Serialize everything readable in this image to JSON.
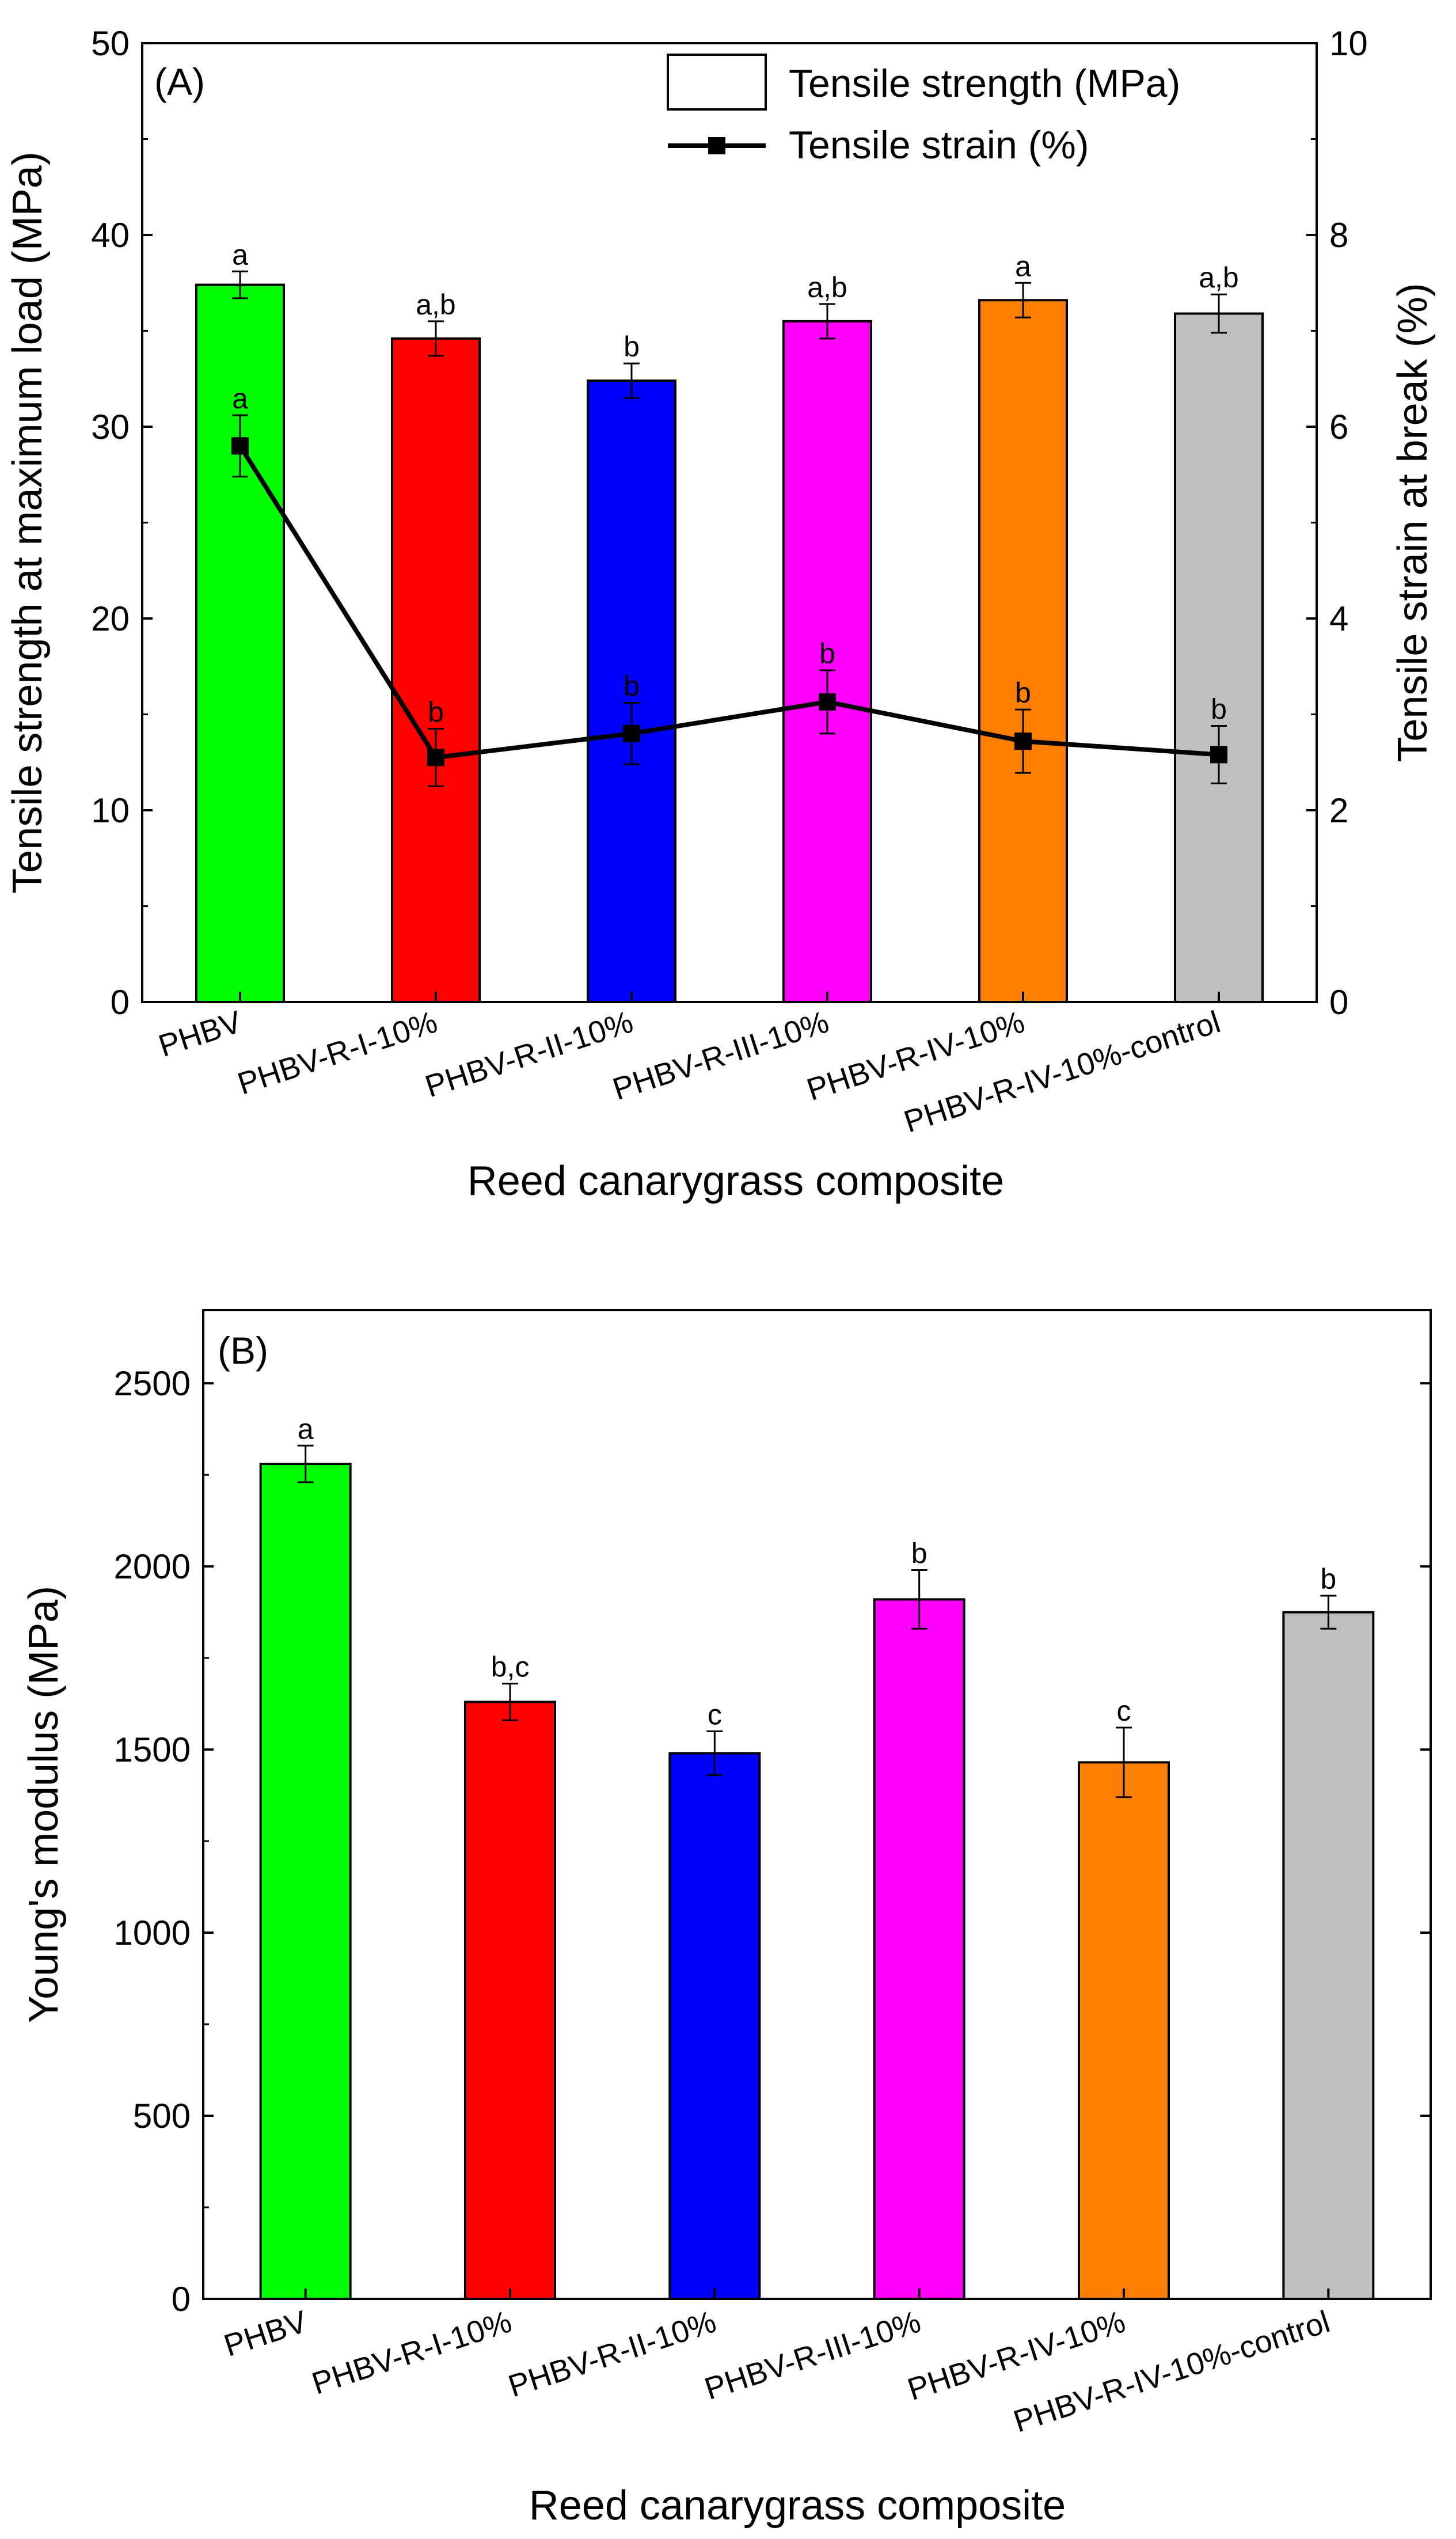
{
  "chart_data": [
    {
      "type": "bar",
      "panel_label": "(A)",
      "categories": [
        "PHBV",
        "PHBV-R-I-10%",
        "PHBV-R-II-10%",
        "PHBV-R-III-10%",
        "PHBV-R-IV-10%",
        "PHBV-R-IV-10%-control"
      ],
      "bar_colors": [
        "#00ff00",
        "#ff0000",
        "#0000ff",
        "#ff00ff",
        "#ff8000",
        "#c0c0c0"
      ],
      "xlabel": "Reed canarygrass composite",
      "ylabel": "Tensile strength at maximum load (MPa)",
      "y2label": "Tensile strain at break (%)",
      "ylim": [
        0,
        50
      ],
      "yticks": [
        0,
        10,
        20,
        30,
        40,
        50
      ],
      "y2lim": [
        0,
        10
      ],
      "y2ticks": [
        0,
        2,
        4,
        6,
        8,
        10
      ],
      "legend_position": "top-right",
      "series": [
        {
          "name": "Tensile strength (MPa)",
          "kind": "bar",
          "axis": "left",
          "values": [
            37.4,
            34.6,
            32.4,
            35.5,
            36.6,
            35.9
          ],
          "errors": [
            0.7,
            0.9,
            0.9,
            0.9,
            0.9,
            1.0
          ],
          "significance": [
            "a",
            "a,b",
            "b",
            "a,b",
            "a",
            "a,b"
          ]
        },
        {
          "name": "Tensile strain (%)",
          "kind": "line",
          "axis": "right",
          "values": [
            5.8,
            2.55,
            2.8,
            3.13,
            2.72,
            2.58
          ],
          "errors": [
            0.32,
            0.3,
            0.32,
            0.33,
            0.33,
            0.3
          ],
          "significance": [
            "a",
            "b",
            "b",
            "b",
            "b",
            "b"
          ]
        }
      ]
    },
    {
      "type": "bar",
      "panel_label": "(B)",
      "categories": [
        "PHBV",
        "PHBV-R-I-10%",
        "PHBV-R-II-10%",
        "PHBV-R-III-10%",
        "PHBV-R-IV-10%",
        "PHBV-R-IV-10%-control"
      ],
      "bar_colors": [
        "#00ff00",
        "#ff0000",
        "#0000ff",
        "#ff00ff",
        "#ff8000",
        "#c0c0c0"
      ],
      "xlabel": "Reed canarygrass composite",
      "ylabel": "Young's modulus (MPa)",
      "ylim": [
        0,
        2700
      ],
      "yticks": [
        0,
        500,
        1000,
        1500,
        2000,
        2500
      ],
      "series": [
        {
          "name": "Young's modulus (MPa)",
          "kind": "bar",
          "values": [
            2280,
            1630,
            1490,
            1910,
            1465,
            1875
          ],
          "errors": [
            50,
            50,
            60,
            80,
            95,
            45
          ],
          "significance": [
            "a",
            "b,c",
            "c",
            "b",
            "c",
            "b"
          ]
        }
      ]
    }
  ]
}
